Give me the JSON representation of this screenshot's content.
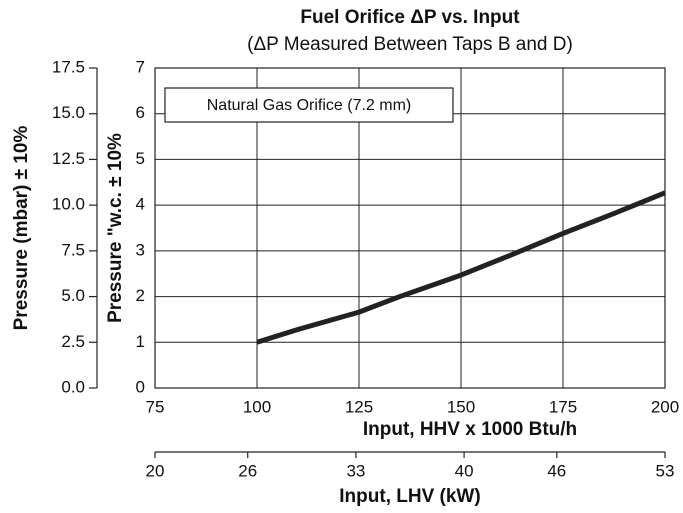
{
  "chart_data": {
    "type": "line",
    "title": "Fuel Orifice ΔP vs. Input",
    "subtitle": "(ΔP Measured Between Taps B and D)",
    "xlabel": "Input, HHV x 1000 Btu/h",
    "ylabel": "Pressure \"w.c. ± 10%",
    "y2label": "Pressure (mbar) ± 10%",
    "x2label": "Input, LHV (kW)",
    "annotation": "Natural Gas Orifice (7.2 mm)",
    "x": [
      100,
      110,
      125,
      135,
      150,
      162,
      175,
      187,
      200
    ],
    "series": [
      {
        "name": "Natural Gas Orifice (7.2 mm)",
        "color": "#222222",
        "values": [
          1,
          1.28,
          1.66,
          2.0,
          2.47,
          2.9,
          3.38,
          3.8,
          4.27
        ]
      }
    ],
    "xlim": [
      75,
      200
    ],
    "xticks": [
      75,
      100,
      125,
      150,
      175,
      200
    ],
    "ylim": [
      0,
      7
    ],
    "yticks": [
      0,
      1,
      2,
      3,
      4,
      5,
      6,
      7
    ],
    "y2lim": [
      0,
      17.5
    ],
    "y2ticks": [
      {
        "value": 0,
        "label": "0.0"
      },
      2.5,
      {
        "value": 5,
        "label": "5.0"
      },
      7.5,
      {
        "value": 10,
        "label": "10.0"
      },
      12.5,
      {
        "value": 15,
        "label": "15.0"
      },
      17.5
    ],
    "x2lim": [
      20,
      53
    ],
    "x2ticks": [
      20,
      26,
      33,
      40,
      46,
      53
    ],
    "grid": true
  }
}
